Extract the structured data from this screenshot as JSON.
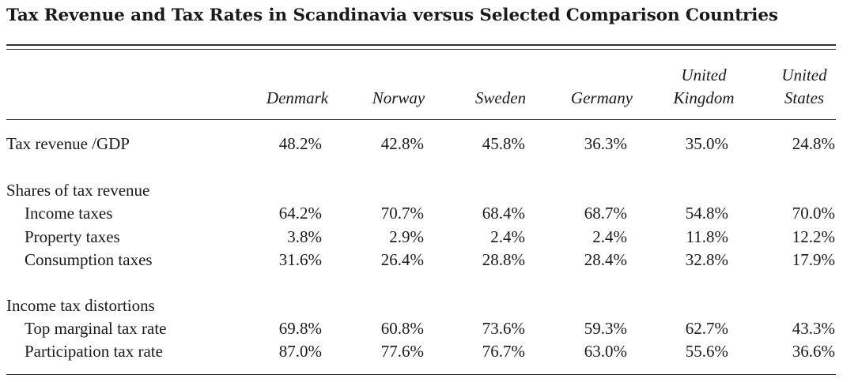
{
  "title": "Tax Revenue and Tax Rates in Scandinavia versus Selected Comparison Countries",
  "columns": [
    {
      "line1": "",
      "line2": "Denmark"
    },
    {
      "line1": "",
      "line2": "Norway"
    },
    {
      "line1": "",
      "line2": "Sweden"
    },
    {
      "line1": "",
      "line2": "Germany"
    },
    {
      "line1": "United",
      "line2": "Kingdom"
    },
    {
      "line1": "United",
      "line2": "States"
    }
  ],
  "rows": [
    {
      "label": "Tax revenue /GDP",
      "indent": false,
      "values": [
        "48.2%",
        "42.8%",
        "45.8%",
        "36.3%",
        "35.0%",
        "24.8%"
      ]
    },
    {
      "label": "Shares of tax revenue",
      "indent": false,
      "values": []
    },
    {
      "label": "Income taxes",
      "indent": true,
      "values": [
        "64.2%",
        "70.7%",
        "68.4%",
        "68.7%",
        "54.8%",
        "70.0%"
      ]
    },
    {
      "label": "Property taxes",
      "indent": true,
      "values": [
        "3.8%",
        "2.9%",
        "2.4%",
        "2.4%",
        "11.8%",
        "12.2%"
      ]
    },
    {
      "label": "Consumption taxes",
      "indent": true,
      "values": [
        "31.6%",
        "26.4%",
        "28.8%",
        "28.4%",
        "32.8%",
        "17.9%"
      ]
    },
    {
      "label": "Income tax distortions",
      "indent": false,
      "values": []
    },
    {
      "label": "Top marginal tax rate",
      "indent": true,
      "values": [
        "69.8%",
        "60.8%",
        "73.6%",
        "59.3%",
        "62.7%",
        "43.3%"
      ]
    },
    {
      "label": "Participation tax rate",
      "indent": true,
      "values": [
        "87.0%",
        "77.6%",
        "76.7%",
        "63.0%",
        "55.6%",
        "36.6%"
      ]
    }
  ]
}
